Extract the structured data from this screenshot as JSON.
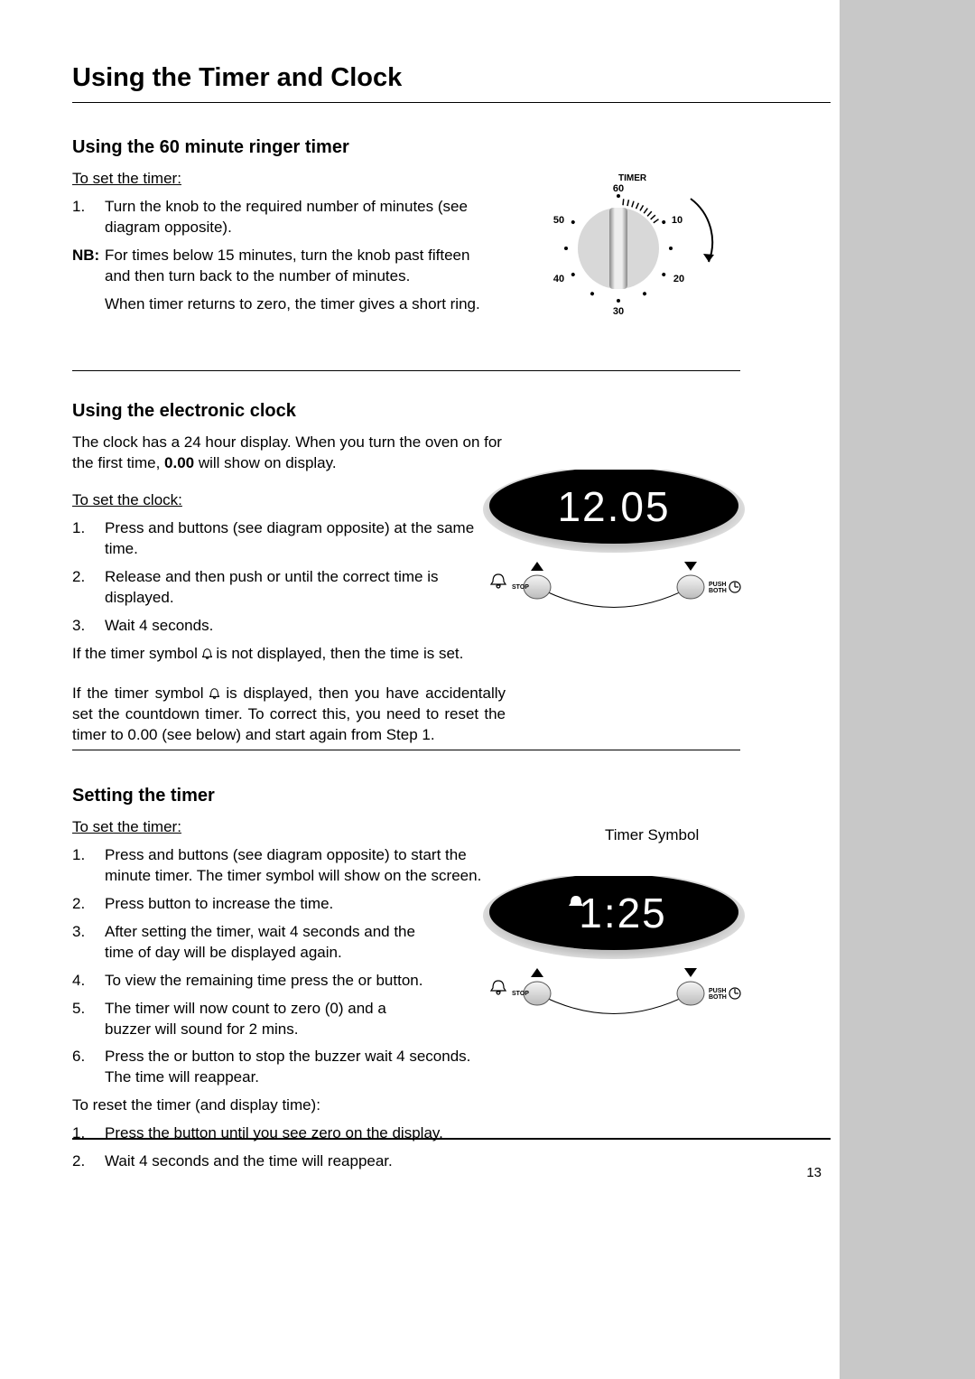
{
  "page_number": "13",
  "title": "Using the Timer and Clock",
  "section1": {
    "heading": "Using the 60 minute ringer timer",
    "sub": "To set the timer:",
    "step1": "Turn the knob to the required number of minutes (see diagram opposite).",
    "nb_label": "NB:",
    "nb1": "For times below 15 minutes, turn the knob past fifteen and then turn back to the number of minutes.",
    "nb2": "When timer returns to zero, the timer gives a short ring."
  },
  "knob": {
    "title": "TIMER",
    "labels": [
      "60",
      "50",
      "40",
      "30",
      "20",
      "10"
    ]
  },
  "section2": {
    "heading": "Using the electronic clock",
    "intro_a": "The clock has a 24 hour display. When you turn the oven on for the first time, ",
    "intro_bold": "0.00",
    "intro_b": " will show on display.",
    "sub": "To set the clock:",
    "s1": "Press        and         buttons (see diagram opposite) at the same time.",
    "s2": "Release and then push        or        until the correct time is displayed.",
    "s3": "Wait 4 seconds.",
    "after1": "If the timer symbol      is not displayed, then the time is set.",
    "after2": "If the timer symbol      is displayed, then you have accidentally set the countdown timer. To correct this, you need to reset the timer to 0.00 (see below) and start again from Step 1."
  },
  "clock": {
    "time1": "12.05",
    "time2": "1:25",
    "stop": "STOP",
    "push": "PUSH",
    "both": "BOTH",
    "timer_symbol_label": "Timer Symbol"
  },
  "section3": {
    "heading": "Setting the timer",
    "sub": "To set the timer:",
    "s1": "Press       and        buttons (see diagram opposite) to start the minute timer. The timer symbol       will show on the screen.",
    "s2": "Press       button to increase the time.",
    "s3": "After setting the timer, wait 4 seconds and the time of day will be displayed again.",
    "s4": "To view the remaining time press the        or        button.",
    "s5": "The timer will now count to zero (0) and a buzzer will sound for 2 mins.",
    "s6": "Press the       or        button to stop the buzzer wait 4 seconds. The time will reappear.",
    "reset_head": "To reset the timer (and display time):",
    "r1": "Press the        button until you see zero on the display.",
    "r2": "Wait 4 seconds and the time will reappear."
  }
}
